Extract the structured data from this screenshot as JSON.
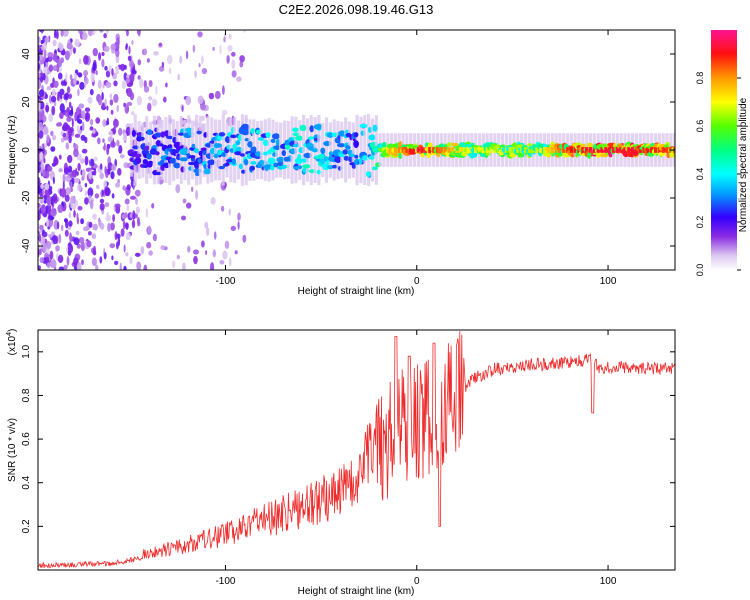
{
  "figure": {
    "title": "C2E2.2026.098.19.46.G13"
  },
  "chart_data": [
    {
      "type": "heatmap",
      "name": "spectrogram",
      "xlabel": "Height of straight line (km)",
      "ylabel": "Frequency (Hz)",
      "xlim": [
        -198,
        135
      ],
      "ylim": [
        -50,
        50
      ],
      "xticks": [
        -100,
        0,
        100
      ],
      "yticks": [
        -40,
        -20,
        0,
        20,
        40
      ],
      "ridge_profile": {
        "description": "normalized spectral amplitude concentrated near 0 Hz",
        "points": [
          [
            -198,
            0.15
          ],
          [
            -140,
            0.3
          ],
          [
            -100,
            0.4
          ],
          [
            -60,
            0.45
          ],
          [
            -30,
            0.35
          ],
          [
            -15,
            0.75
          ],
          [
            0,
            0.95
          ],
          [
            25,
            0.7
          ],
          [
            60,
            0.65
          ],
          [
            80,
            0.9
          ],
          [
            100,
            0.95
          ],
          [
            120,
            0.9
          ],
          [
            135,
            0.85
          ]
        ]
      },
      "colorbar": {
        "label": "Normalized spectral amplitude",
        "range": [
          0,
          1
        ],
        "ticks": [
          0.0,
          0.2,
          0.4,
          0.6,
          0.8
        ],
        "tick_labels": [
          "0.0",
          "0.2",
          "0.4",
          "0.6",
          "0.8"
        ]
      }
    },
    {
      "type": "line",
      "name": "snr",
      "xlabel": "Height of straight line (km)",
      "ylabel": "SNR (10 * v/v)",
      "exponent": "(x10",
      "exponent_power": "4",
      "exponent_close": ")",
      "xlim": [
        -198,
        135
      ],
      "ylim": [
        0,
        1.1
      ],
      "xticks": [
        -100,
        0,
        100
      ],
      "yticks": [
        0.2,
        0.4,
        0.6,
        0.8,
        1.0
      ],
      "ytick_labels": [
        "0.2",
        "0.4",
        "0.6",
        "0.8",
        "1.0"
      ],
      "color": "#ee2a2a",
      "trend": [
        [
          -198,
          0.02
        ],
        [
          -160,
          0.03
        ],
        [
          -140,
          0.06
        ],
        [
          -120,
          0.09
        ],
        [
          -100,
          0.13
        ],
        [
          -80,
          0.18
        ],
        [
          -60,
          0.22
        ],
        [
          -40,
          0.28
        ],
        [
          -30,
          0.32
        ],
        [
          -20,
          0.48
        ],
        [
          -10,
          0.62
        ],
        [
          0,
          0.66
        ],
        [
          10,
          0.68
        ],
        [
          20,
          0.78
        ],
        [
          30,
          0.88
        ],
        [
          40,
          0.92
        ],
        [
          60,
          0.94
        ],
        [
          80,
          0.95
        ],
        [
          88,
          0.96
        ],
        [
          92,
          0.98
        ],
        [
          95,
          0.93
        ],
        [
          110,
          0.93
        ],
        [
          135,
          0.92
        ]
      ],
      "spikes": [
        [
          -11,
          1.07
        ],
        [
          -4,
          0.98
        ],
        [
          9,
          1.04
        ],
        [
          12,
          0.2
        ],
        [
          92,
          0.72
        ]
      ]
    }
  ]
}
